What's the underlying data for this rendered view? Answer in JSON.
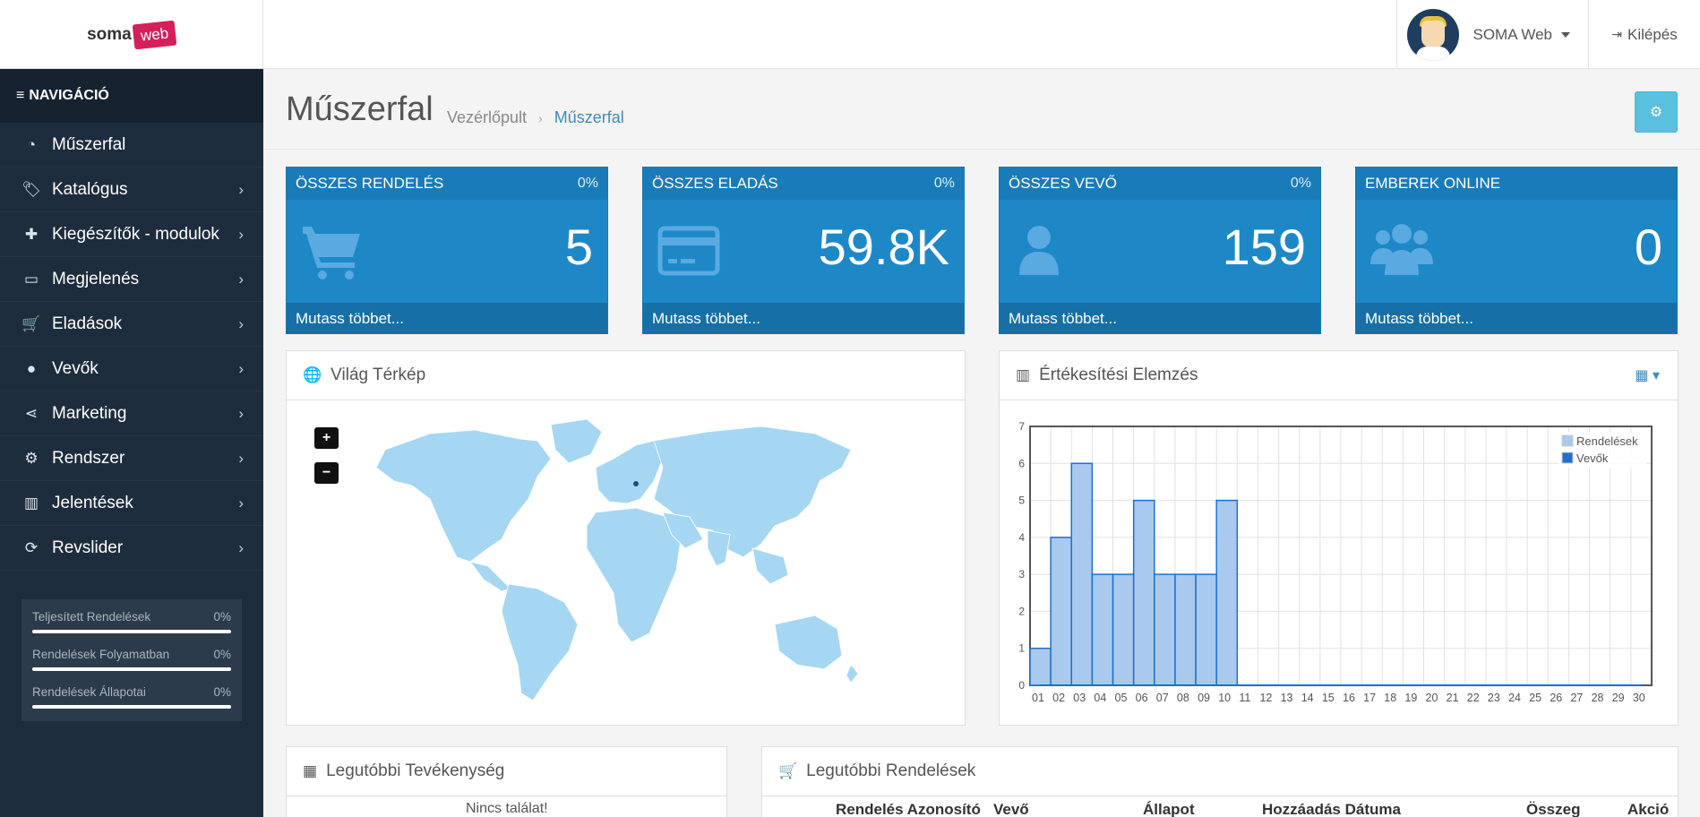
{
  "header": {
    "logo_soma": "soma",
    "logo_web": "web",
    "user_name": "SOMA Web",
    "logout_label": "Kilépés"
  },
  "sidebar": {
    "nav_title": "NAVIGÁCIÓ",
    "items": [
      {
        "label": "Műszerfal",
        "icon": "dashboard-icon"
      },
      {
        "label": "Katalógus",
        "icon": "tags-icon"
      },
      {
        "label": "Kiegészítők - modulok",
        "icon": "puzzle-icon"
      },
      {
        "label": "Megjelenés",
        "icon": "desktop-icon"
      },
      {
        "label": "Eladások",
        "icon": "cart-icon"
      },
      {
        "label": "Vevők",
        "icon": "user-icon"
      },
      {
        "label": "Marketing",
        "icon": "share-icon"
      },
      {
        "label": "Rendszer",
        "icon": "gear-icon"
      },
      {
        "label": "Jelentések",
        "icon": "bar-chart-icon"
      },
      {
        "label": "Revslider",
        "icon": "refresh-icon"
      }
    ],
    "stats": [
      {
        "label": "Teljesített Rendelések",
        "value": "0%"
      },
      {
        "label": "Rendelések Folyamatban",
        "value": "0%"
      },
      {
        "label": "Rendelések Állapotai",
        "value": "0%"
      }
    ]
  },
  "page": {
    "title": "Műszerfal",
    "breadcrumb_home": "Vezérlőpult",
    "breadcrumb_current": "Műszerfal"
  },
  "tiles": [
    {
      "title": "ÖSSZES RENDELÉS",
      "pct": "0%",
      "value": "5",
      "footer": "Mutass többet...",
      "icon": "cart-icon"
    },
    {
      "title": "ÖSSZES ELADÁS",
      "pct": "0%",
      "value": "59.8K",
      "footer": "Mutass többet...",
      "icon": "credit-card-icon"
    },
    {
      "title": "ÖSSZES VEVŐ",
      "pct": "0%",
      "value": "159",
      "footer": "Mutass többet...",
      "icon": "user-icon"
    },
    {
      "title": "EMBEREK ONLINE",
      "pct": "",
      "value": "0",
      "footer": "Mutass többet...",
      "icon": "users-icon"
    }
  ],
  "map_panel": {
    "title": "Világ Térkép",
    "zoom_in": "+",
    "zoom_out": "−"
  },
  "sales_panel": {
    "title": "Értékesítési Elemzés"
  },
  "activity_panel": {
    "title": "Legutóbbi Tevékenység",
    "empty": "Nincs találat!"
  },
  "orders_panel": {
    "title": "Legutóbbi Rendelések",
    "columns": [
      "Rendelés Azonosító",
      "Vevő",
      "Állapot",
      "Hozzáadás Dátuma",
      "Összeg",
      "Akció"
    ]
  },
  "colors": {
    "tile_blue": "#1e88c7",
    "sidebar_bg": "#1e2d3d",
    "bar_fill": "#a9c9ef",
    "bar_stroke": "#1f6fd0"
  },
  "chart_data": {
    "type": "bar",
    "categories": [
      "01",
      "02",
      "03",
      "04",
      "05",
      "06",
      "07",
      "08",
      "09",
      "10",
      "11",
      "12",
      "13",
      "14",
      "15",
      "16",
      "17",
      "18",
      "19",
      "20",
      "21",
      "22",
      "23",
      "24",
      "25",
      "26",
      "27",
      "28",
      "29",
      "30"
    ],
    "series": [
      {
        "name": "Rendelések",
        "values": [
          1,
          4,
          6,
          3,
          3,
          5,
          3,
          3,
          3,
          5,
          0,
          0,
          0,
          0,
          0,
          0,
          0,
          0,
          0,
          0,
          0,
          0,
          0,
          0,
          0,
          0,
          0,
          0,
          0,
          0
        ]
      },
      {
        "name": "Vevők",
        "values": [
          0,
          0,
          0,
          0,
          0,
          0,
          0,
          0,
          0,
          0,
          0,
          0,
          0,
          0,
          0,
          0,
          0,
          0,
          0,
          0,
          0,
          0,
          0,
          0,
          0,
          0,
          0,
          0,
          0,
          0
        ]
      }
    ],
    "yticks": [
      0,
      1,
      2,
      3,
      4,
      5,
      6,
      7
    ],
    "ylim": [
      0,
      7
    ],
    "legend": "top-right",
    "grid": true
  }
}
